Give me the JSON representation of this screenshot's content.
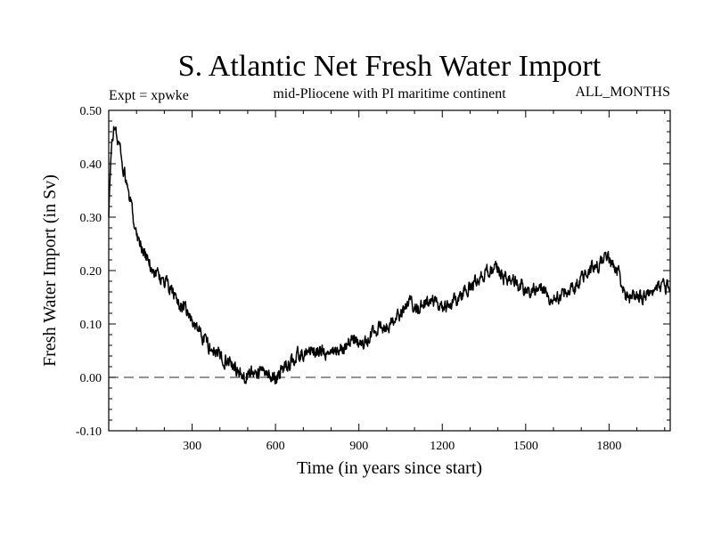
{
  "chart_data": {
    "type": "line",
    "title": "S. Atlantic Net Fresh Water Import",
    "expt_label": "Expt = xpwke",
    "subtitle": "mid-Pliocene with PI maritime continent",
    "months_label": "ALL_MONTHS",
    "xlabel": "Time (in years since start)",
    "ylabel": "Fresh Water Import (in Sv)",
    "xlim": [
      0,
      2020
    ],
    "ylim": [
      -0.1,
      0.5
    ],
    "x_ticks": [
      300,
      600,
      900,
      1200,
      1500,
      1800
    ],
    "x_tick_labels": [
      "300",
      "600",
      "900",
      "1200",
      "1500",
      "1800"
    ],
    "y_ticks": [
      -0.1,
      0.0,
      0.1,
      0.2,
      0.3,
      0.4,
      0.5
    ],
    "y_tick_labels": [
      "-0.10",
      "0.00",
      "0.10",
      "0.20",
      "0.30",
      "0.40",
      "0.50"
    ],
    "reference_line": {
      "y": 0.0,
      "style": "dashed"
    },
    "series": [
      {
        "name": "net fresh water import",
        "x": [
          0,
          10,
          20,
          40,
          60,
          80,
          100,
          130,
          160,
          200,
          240,
          280,
          320,
          360,
          400,
          440,
          480,
          520,
          560,
          600,
          640,
          680,
          720,
          760,
          800,
          840,
          880,
          920,
          960,
          1000,
          1040,
          1080,
          1120,
          1160,
          1200,
          1240,
          1280,
          1320,
          1360,
          1400,
          1440,
          1480,
          1520,
          1560,
          1600,
          1640,
          1680,
          1720,
          1760,
          1800,
          1830,
          1860,
          1900,
          1940,
          1980,
          2020
        ],
        "y": [
          0.3,
          0.44,
          0.47,
          0.43,
          0.37,
          0.32,
          0.27,
          0.23,
          0.2,
          0.18,
          0.15,
          0.12,
          0.09,
          0.06,
          0.04,
          0.03,
          0.0,
          0.01,
          0.01,
          0.0,
          0.02,
          0.04,
          0.05,
          0.05,
          0.04,
          0.06,
          0.07,
          0.06,
          0.09,
          0.1,
          0.11,
          0.14,
          0.13,
          0.14,
          0.13,
          0.14,
          0.16,
          0.18,
          0.2,
          0.2,
          0.18,
          0.17,
          0.16,
          0.17,
          0.14,
          0.16,
          0.17,
          0.2,
          0.21,
          0.22,
          0.2,
          0.15,
          0.15,
          0.15,
          0.17,
          0.17
        ]
      }
    ]
  }
}
